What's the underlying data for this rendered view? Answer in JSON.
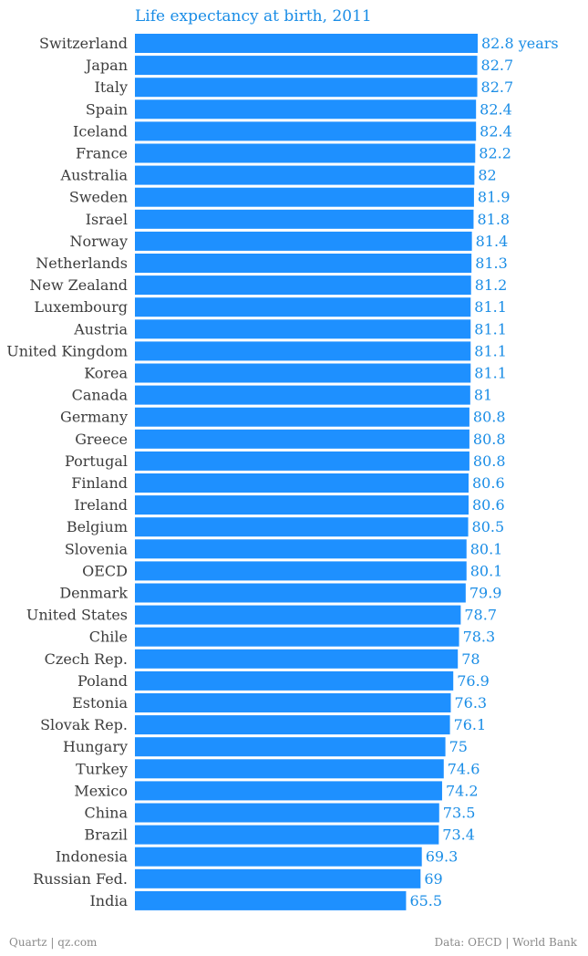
{
  "footer": {
    "source_left": "Quartz | qz.com",
    "source_right": "Data: OECD | World Bank"
  },
  "colors": {
    "bar": "#1e90ff",
    "value_text": "#1a8de6",
    "label_text": "#3d3d3d",
    "footer_text": "#8a8a8a"
  },
  "chart_data": {
    "type": "bar",
    "orientation": "horizontal",
    "title": "Life expectancy at birth, 2011",
    "xlabel": "",
    "ylabel": "",
    "first_value_suffix": " years",
    "xlim": [
      0,
      82.8
    ],
    "grid": false,
    "legend": "none",
    "categories": [
      "Switzerland",
      "Japan",
      "Italy",
      "Spain",
      "Iceland",
      "France",
      "Australia",
      "Sweden",
      "Israel",
      "Norway",
      "Netherlands",
      "New Zealand",
      "Luxembourg",
      "Austria",
      "United Kingdom",
      "Korea",
      "Canada",
      "Germany",
      "Greece",
      "Portugal",
      "Finland",
      "Ireland",
      "Belgium",
      "Slovenia",
      "OECD",
      "Denmark",
      "United States",
      "Chile",
      "Czech Rep.",
      "Poland",
      "Estonia",
      "Slovak Rep.",
      "Hungary",
      "Turkey",
      "Mexico",
      "China",
      "Brazil",
      "Indonesia",
      "Russian Fed.",
      "India"
    ],
    "values": [
      82.8,
      82.7,
      82.7,
      82.4,
      82.4,
      82.2,
      82,
      81.9,
      81.8,
      81.4,
      81.3,
      81.2,
      81.1,
      81.1,
      81.1,
      81.1,
      81,
      80.8,
      80.8,
      80.8,
      80.6,
      80.6,
      80.5,
      80.1,
      80.1,
      79.9,
      78.7,
      78.3,
      78,
      76.9,
      76.3,
      76.1,
      75,
      74.6,
      74.2,
      73.5,
      73.4,
      69.3,
      69,
      65.5
    ]
  }
}
